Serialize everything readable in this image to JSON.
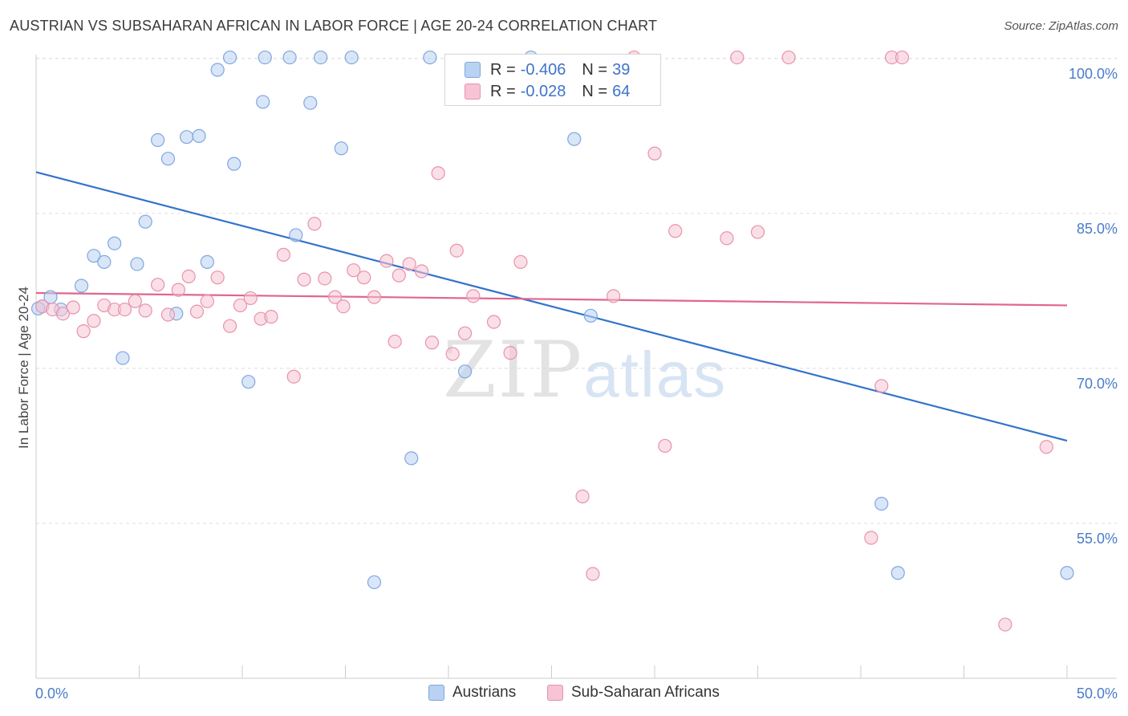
{
  "title": "AUSTRIAN VS SUBSAHARAN AFRICAN IN LABOR FORCE | AGE 20-24 CORRELATION CHART",
  "source": "Source: ZipAtlas.com",
  "watermark": {
    "zip": "ZIP",
    "atlas": "atlas"
  },
  "legend": {
    "rows": [
      {
        "r_label": "R =",
        "r_value": "-0.406",
        "n_label": "N =",
        "n_value": "39"
      },
      {
        "r_label": "R =",
        "r_value": "-0.028",
        "n_label": "N =",
        "n_value": "64"
      }
    ]
  },
  "colors": {
    "blue_fill": "#b9d2f2",
    "blue_stroke": "#7fa7de",
    "blue_line": "#3373cc",
    "pink_fill": "#f6c4d4",
    "pink_stroke": "#e892ad",
    "pink_line": "#e0668e",
    "grid": "#dcdcdc",
    "axis": "#cccccc"
  },
  "chart_data": {
    "type": "scatter",
    "title": "AUSTRIAN VS SUBSAHARAN AFRICAN IN LABOR FORCE | AGE 20-24 CORRELATION CHART",
    "xlabel": "",
    "ylabel": "In Labor Force | Age 20-24",
    "xlim": [
      0,
      50
    ],
    "ylim": [
      40,
      101
    ],
    "x_tick_labels": [
      "0.0%",
      "50.0%"
    ],
    "y_ticks": [
      55,
      70,
      85,
      100
    ],
    "y_tick_labels": [
      "55.0%",
      "70.0%",
      "85.0%",
      "100.0%"
    ],
    "grid": true,
    "legend_position": "bottom",
    "series": [
      {
        "name": "Austrians",
        "color": "#7fa7de",
        "trend": {
          "x": [
            0,
            50
          ],
          "y": [
            89.0,
            63.0
          ]
        },
        "points": [
          [
            0.3,
            76.0
          ],
          [
            0.7,
            76.9
          ],
          [
            1.2,
            75.7
          ],
          [
            2.2,
            78.0
          ],
          [
            2.8,
            80.9
          ],
          [
            3.3,
            80.3
          ],
          [
            3.8,
            82.1
          ],
          [
            4.2,
            71.0
          ],
          [
            4.9,
            80.1
          ],
          [
            5.3,
            84.2
          ],
          [
            5.9,
            92.1
          ],
          [
            6.4,
            90.3
          ],
          [
            6.8,
            75.3
          ],
          [
            7.3,
            92.4
          ],
          [
            7.9,
            92.5
          ],
          [
            8.3,
            80.3
          ],
          [
            8.8,
            98.9
          ],
          [
            9.4,
            100.1
          ],
          [
            9.6,
            89.8
          ],
          [
            10.3,
            68.7
          ],
          [
            11.0,
            95.8
          ],
          [
            11.1,
            100.1
          ],
          [
            12.3,
            100.1
          ],
          [
            12.6,
            82.9
          ],
          [
            13.3,
            95.7
          ],
          [
            13.8,
            100.1
          ],
          [
            14.8,
            91.3
          ],
          [
            15.3,
            100.1
          ],
          [
            16.4,
            49.3
          ],
          [
            18.2,
            61.3
          ],
          [
            19.1,
            100.1
          ],
          [
            20.8,
            69.7
          ],
          [
            24.0,
            100.1
          ],
          [
            26.1,
            92.2
          ],
          [
            26.9,
            75.1
          ],
          [
            41.0,
            56.9
          ],
          [
            41.8,
            50.2
          ],
          [
            50.0,
            50.2
          ],
          [
            0.1,
            75.8
          ]
        ]
      },
      {
        "name": "Sub-Saharan Africans",
        "color": "#e892ad",
        "trend": {
          "x": [
            0,
            50
          ],
          "y": [
            77.3,
            76.1
          ]
        },
        "points": [
          [
            0.3,
            76.0
          ],
          [
            0.8,
            75.7
          ],
          [
            1.3,
            75.3
          ],
          [
            1.8,
            75.9
          ],
          [
            2.3,
            73.6
          ],
          [
            2.8,
            74.6
          ],
          [
            3.3,
            76.1
          ],
          [
            3.8,
            75.7
          ],
          [
            4.3,
            75.7
          ],
          [
            4.8,
            76.5
          ],
          [
            5.3,
            75.6
          ],
          [
            5.9,
            78.1
          ],
          [
            6.4,
            75.2
          ],
          [
            6.9,
            77.6
          ],
          [
            7.4,
            78.9
          ],
          [
            7.8,
            75.5
          ],
          [
            8.3,
            76.5
          ],
          [
            8.8,
            78.8
          ],
          [
            9.4,
            74.1
          ],
          [
            9.9,
            76.1
          ],
          [
            10.4,
            76.8
          ],
          [
            10.9,
            74.8
          ],
          [
            11.4,
            75.0
          ],
          [
            12.0,
            81.0
          ],
          [
            12.5,
            69.2
          ],
          [
            13.0,
            78.6
          ],
          [
            13.5,
            84.0
          ],
          [
            14.0,
            78.7
          ],
          [
            14.5,
            76.9
          ],
          [
            14.9,
            76.0
          ],
          [
            15.4,
            79.5
          ],
          [
            15.9,
            78.8
          ],
          [
            16.4,
            76.9
          ],
          [
            17.0,
            80.4
          ],
          [
            17.4,
            72.6
          ],
          [
            17.6,
            79.0
          ],
          [
            18.1,
            80.1
          ],
          [
            18.7,
            79.4
          ],
          [
            19.2,
            72.5
          ],
          [
            19.5,
            88.9
          ],
          [
            20.2,
            71.4
          ],
          [
            20.4,
            81.4
          ],
          [
            20.8,
            73.4
          ],
          [
            21.2,
            77.0
          ],
          [
            22.2,
            74.5
          ],
          [
            23.0,
            71.5
          ],
          [
            23.5,
            80.3
          ],
          [
            26.5,
            57.6
          ],
          [
            27.0,
            50.1
          ],
          [
            28.0,
            77.0
          ],
          [
            29.0,
            100.1
          ],
          [
            30.0,
            90.8
          ],
          [
            30.5,
            62.5
          ],
          [
            31.0,
            83.3
          ],
          [
            33.5,
            82.6
          ],
          [
            34.0,
            100.1
          ],
          [
            35.0,
            83.2
          ],
          [
            36.5,
            100.1
          ],
          [
            40.5,
            53.6
          ],
          [
            41.0,
            68.3
          ],
          [
            41.5,
            100.1
          ],
          [
            42.0,
            100.1
          ],
          [
            47.0,
            45.2
          ],
          [
            49.0,
            62.4
          ]
        ]
      }
    ]
  },
  "bottom_legend": [
    {
      "name": "Austrians"
    },
    {
      "name": "Sub-Saharan Africans"
    }
  ]
}
